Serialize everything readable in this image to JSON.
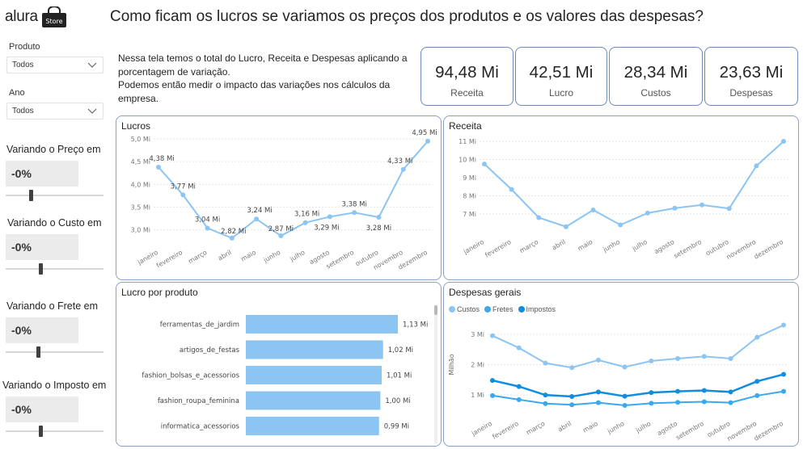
{
  "app": {
    "logo_text": "alura",
    "logo_badge": "Store",
    "title": "Como ficam os lucros se variamos os preços dos produtos e os valores das despesas?"
  },
  "filters": {
    "produto": {
      "label": "Produto",
      "value": "Todos"
    },
    "ano": {
      "label": "Ano",
      "value": "Todos"
    }
  },
  "variations": [
    {
      "label": "Variando o Preço em",
      "value": "-0%",
      "level": 0.25
    },
    {
      "label": "Variando o Custo em",
      "value": "-0%",
      "level": 0.35
    },
    {
      "label": "Variando o Frete em",
      "value": "-0%",
      "level": 0.33
    },
    {
      "label": "Variando o Imposto em",
      "value": "-0%",
      "level": 0.35
    }
  ],
  "intro": {
    "line1": "Nessa tela temos o total do Lucro, Receita e Despesas aplicando a porcentagem de variação.",
    "line2": "Podemos então medir o impacto das variações nos cálculos da empresa."
  },
  "kpis": [
    {
      "value": "94,48 Mi",
      "label": "Receita"
    },
    {
      "value": "42,51 Mi",
      "label": "Lucro"
    },
    {
      "value": "28,34 Mi",
      "label": "Custos"
    },
    {
      "value": "23,63 Mi",
      "label": "Despesas"
    }
  ],
  "colors": {
    "light_blue": "#8cc4f2",
    "mid_blue": "#3aa8ec",
    "dark_blue": "#118de0",
    "panel_border": "#8aa0c8"
  },
  "chart_data": [
    {
      "id": "lucros",
      "type": "line",
      "title": "Lucros",
      "categories": [
        "janeiro",
        "fevereiro",
        "março",
        "abril",
        "maio",
        "junho",
        "julho",
        "agosto",
        "setembro",
        "outubro",
        "novembro",
        "dezembro"
      ],
      "series": [
        {
          "values": [
            4.38,
            3.77,
            3.04,
            2.82,
            3.24,
            2.87,
            3.16,
            3.29,
            3.38,
            3.28,
            4.33,
            4.95
          ]
        }
      ],
      "data_labels": [
        "4,38 Mi",
        "3,77 Mi",
        "3,04 Mi",
        "2,82 Mi",
        "3,24 Mi",
        "2,87 Mi",
        "3,16 Mi",
        "3,29 Mi",
        "3,38 Mi",
        "3,28 Mi",
        "4,33 Mi",
        "4,95 Mi"
      ],
      "yticks": [
        3.0,
        3.5,
        4.0,
        4.5,
        5.0
      ],
      "ytick_labels": [
        "3,0 Mi",
        "3,5 Mi",
        "4,0 Mi",
        "4,5 Mi",
        "5,0 Mi"
      ],
      "ylim": [
        2.8,
        5.0
      ]
    },
    {
      "id": "receita",
      "type": "line",
      "title": "Receita",
      "categories": [
        "janeiro",
        "fevereiro",
        "março",
        "abril",
        "maio",
        "junho",
        "julho",
        "agosto",
        "setembro",
        "outubro",
        "novembro",
        "dezembro"
      ],
      "series": [
        {
          "values": [
            9.75,
            8.35,
            6.8,
            6.3,
            7.22,
            6.4,
            7.05,
            7.32,
            7.5,
            7.3,
            9.65,
            11.0
          ]
        }
      ],
      "yticks": [
        7,
        8,
        9,
        10,
        11
      ],
      "ytick_labels": [
        "7 Mi",
        "8 Mi",
        "9 Mi",
        "10 Mi",
        "11 Mi"
      ],
      "ylim": [
        6.2,
        11.0
      ]
    },
    {
      "id": "lucro_produto",
      "type": "bar",
      "orientation": "horizontal",
      "title": "Lucro por produto",
      "categories": [
        "ferramentas_de_jardim",
        "artigos_de_festas",
        "fashion_bolsas_e_acessorios",
        "fashion_roupa_feminina",
        "informatica_acessorios"
      ],
      "values": [
        1.13,
        1.02,
        1.01,
        1.0,
        0.99
      ],
      "data_labels": [
        "1,13 Mi",
        "1,02 Mi",
        "1,01 Mi",
        "1,00 Mi",
        "0,99 Mi"
      ],
      "xlim": [
        0,
        1.13
      ]
    },
    {
      "id": "despesas_gerais",
      "type": "line",
      "title": "Despesas gerais",
      "ylabel": "Milhão",
      "categories": [
        "janeiro",
        "fevereiro",
        "março",
        "abril",
        "maio",
        "junho",
        "julho",
        "agosto",
        "setembro",
        "outubro",
        "novembro",
        "dezembro"
      ],
      "series": [
        {
          "name": "Custos",
          "values": [
            2.95,
            2.55,
            2.05,
            1.9,
            2.15,
            1.92,
            2.12,
            2.2,
            2.27,
            2.2,
            2.9,
            3.3
          ]
        },
        {
          "name": "Fretes",
          "values": [
            0.98,
            0.85,
            0.72,
            0.68,
            0.75,
            0.66,
            0.73,
            0.76,
            0.78,
            0.75,
            0.98,
            1.12
          ]
        },
        {
          "name": "Impostos",
          "values": [
            1.48,
            1.28,
            1.0,
            0.95,
            1.1,
            0.96,
            1.08,
            1.12,
            1.15,
            1.1,
            1.45,
            1.68
          ]
        }
      ],
      "series_colors": [
        "#8cc4f2",
        "#3aa8ec",
        "#118de0"
      ],
      "yticks": [
        1,
        2,
        3
      ],
      "ytick_labels": [
        "1 Mi",
        "2 Mi",
        "3 Mi"
      ],
      "ylim": [
        0.5,
        3.5
      ]
    }
  ]
}
